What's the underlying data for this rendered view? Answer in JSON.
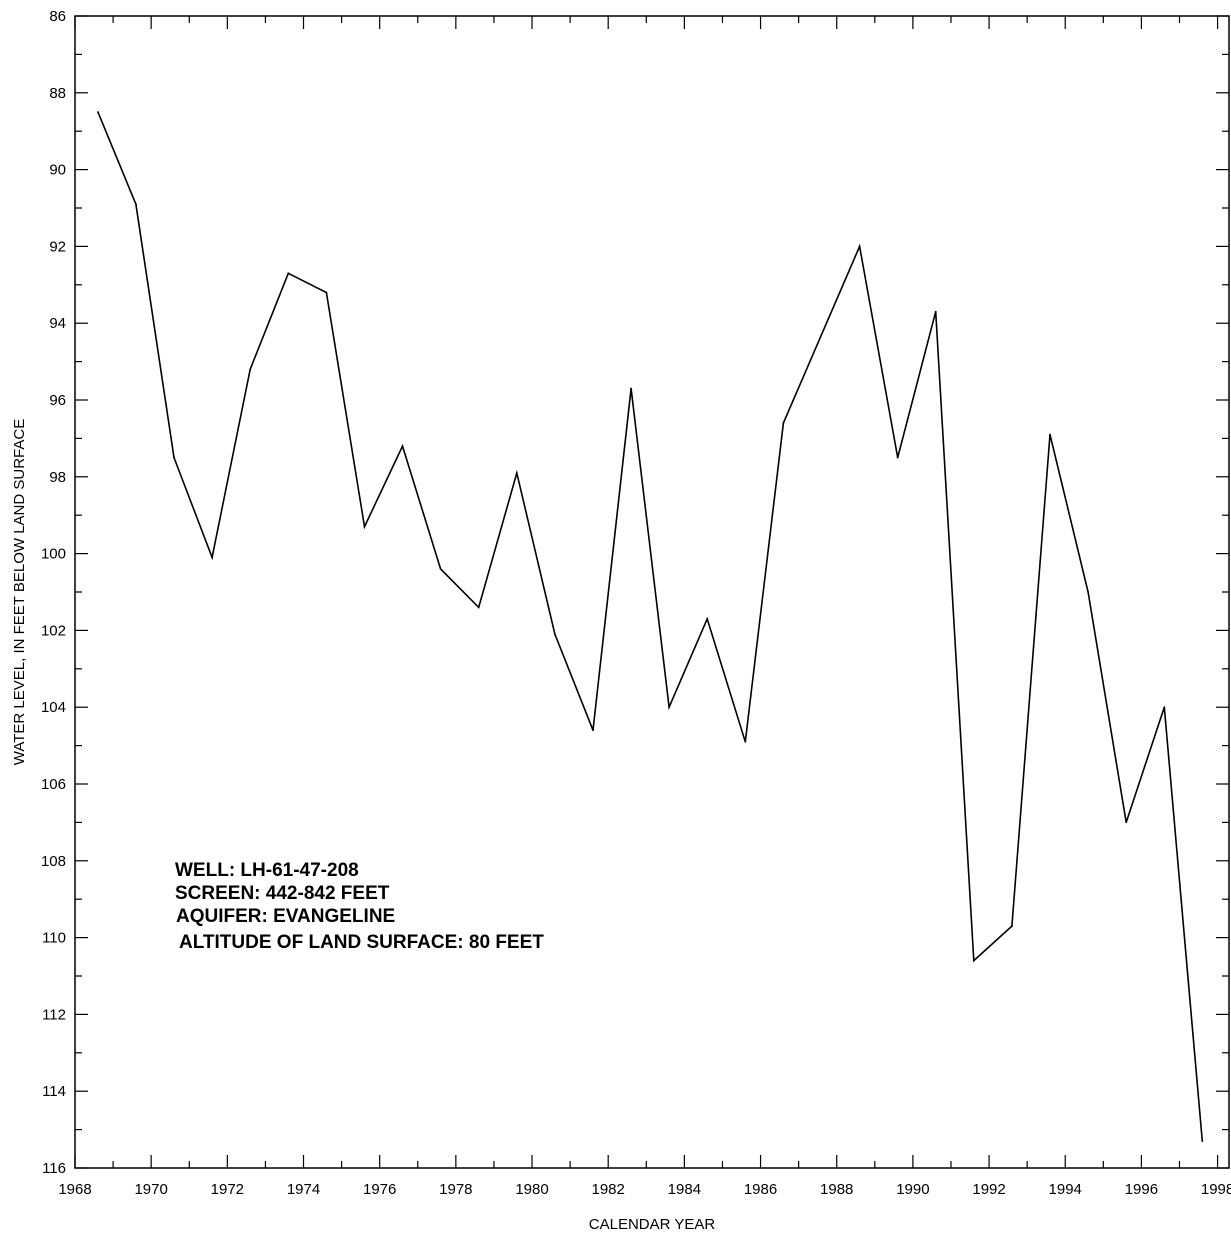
{
  "chart_data": {
    "type": "line",
    "title": "",
    "xlabel": "CALENDAR YEAR",
    "ylabel": "WATER LEVEL, IN FEET BELOW LAND SURFACE",
    "xlim": [
      1968,
      1998.3
    ],
    "ylim": [
      86,
      116
    ],
    "y_inverted": true,
    "grid": false,
    "x_ticks": [
      1968,
      1970,
      1972,
      1974,
      1976,
      1978,
      1980,
      1982,
      1984,
      1986,
      1988,
      1990,
      1992,
      1994,
      1996,
      1998
    ],
    "y_ticks": [
      86,
      88,
      90,
      92,
      94,
      96,
      98,
      100,
      102,
      104,
      106,
      108,
      110,
      112,
      114,
      116
    ],
    "series": [
      {
        "x": [
          1968.6,
          1969.6,
          1970.6,
          1971.6,
          1972.6,
          1973.6,
          1974.6,
          1975.6,
          1976.6,
          1977.6,
          1978.6,
          1979.6,
          1980.6,
          1981.6,
          1982.6,
          1983.6,
          1984.6,
          1985.6,
          1986.6,
          1988.6,
          1989.6,
          1990.6,
          1991.6,
          1992.6,
          1993.6,
          1994.6,
          1995.6,
          1996.6,
          1997.6
        ],
        "y": [
          88.5,
          90.9,
          97.5,
          100.1,
          95.2,
          92.7,
          93.2,
          99.3,
          97.2,
          100.4,
          101.4,
          97.9,
          102.1,
          104.6,
          95.7,
          104.0,
          101.7,
          104.9,
          96.6,
          92.0,
          97.5,
          93.7,
          110.6,
          109.7,
          96.9,
          101.0,
          107.0,
          104.0,
          115.3
        ],
        "color": "#000000"
      }
    ],
    "annotations": [
      "WELL: LH-61-47-208",
      "SCREEN: 442-842 FEET",
      "AQUIFER: EVANGELINE",
      "ALTITUDE OF LAND SURFACE: 80 FEET"
    ]
  }
}
